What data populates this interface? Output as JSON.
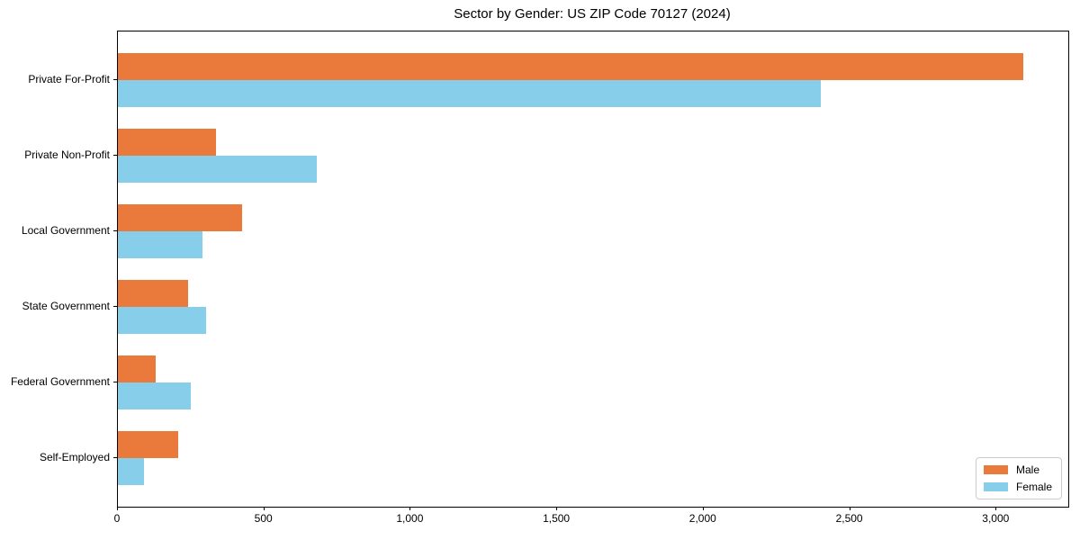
{
  "chart_data": {
    "type": "bar",
    "orientation": "horizontal",
    "title": "Sector by Gender: US ZIP Code 70127 (2024)",
    "xlabel": "",
    "ylabel": "",
    "categories": [
      "Private For-Profit",
      "Private Non-Profit",
      "Local Government",
      "State Government",
      "Federal Government",
      "Self-Employed"
    ],
    "series": [
      {
        "name": "Male",
        "color": "#EA7A3C",
        "values": [
          3090,
          335,
          425,
          240,
          130,
          205
        ]
      },
      {
        "name": "Female",
        "color": "#87CEEB",
        "values": [
          2400,
          680,
          290,
          300,
          250,
          90
        ]
      }
    ],
    "xlim": [
      0,
      3245
    ],
    "xticks": [
      0,
      500,
      1000,
      1500,
      2000,
      2500,
      3000
    ],
    "xtick_labels": [
      "0",
      "500",
      "1,000",
      "1,500",
      "2,000",
      "2,500",
      "3,000"
    ],
    "grid": false,
    "legend": {
      "position": "lower right",
      "entries": [
        {
          "label": "Male",
          "color": "#EA7A3C"
        },
        {
          "label": "Female",
          "color": "#87CEEB"
        }
      ]
    },
    "colors": {
      "spine": "#000000",
      "legend_border": "#cccccc",
      "background": "#ffffff"
    }
  }
}
